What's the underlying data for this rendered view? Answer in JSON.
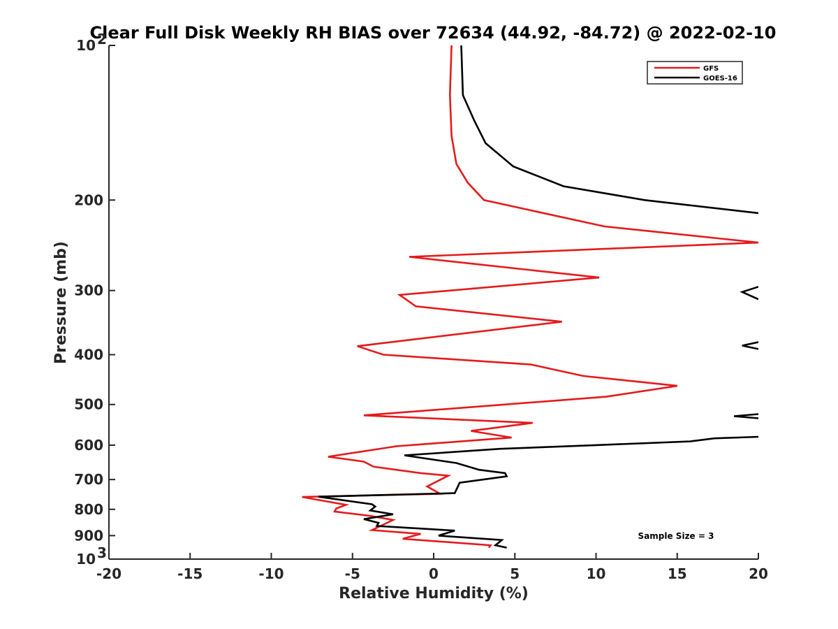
{
  "chart_data": {
    "type": "line",
    "title": "Clear Full Disk Weekly RH BIAS over 72634 (44.92, -84.72) @ 2022-02-10",
    "xlabel": "Relative Humidity (%)",
    "ylabel": "Pressure (mb)",
    "xlim": [
      -20,
      20
    ],
    "ylim": [
      100,
      1000
    ],
    "yscale": "log",
    "yreversed": true,
    "grid": false,
    "legend_position": "top-right",
    "x_ticks": [
      "-20",
      "-15",
      "-10",
      "-5",
      "0",
      "5",
      "10",
      "15",
      "20"
    ],
    "y_ticks": [
      {
        "value": 100,
        "label": "10",
        "sup": "2"
      },
      {
        "value": 200,
        "label": "200"
      },
      {
        "value": 300,
        "label": "300"
      },
      {
        "value": 400,
        "label": "400"
      },
      {
        "value": 500,
        "label": "500"
      },
      {
        "value": 600,
        "label": "600"
      },
      {
        "value": 700,
        "label": "700"
      },
      {
        "value": 800,
        "label": "800"
      },
      {
        "value": 900,
        "label": "900"
      },
      {
        "value": 1000,
        "label": "10",
        "sup": "3"
      }
    ],
    "annotation": "Sample Size = 3",
    "series": [
      {
        "name": "GFS",
        "color": "#e41a1c",
        "segments": [
          [
            [
              1.1,
              100
            ],
            [
              1.0,
              125
            ],
            [
              1.1,
              150
            ],
            [
              1.4,
              170
            ],
            [
              2.1,
              185
            ],
            [
              3.1,
              200
            ],
            [
              10.5,
              225
            ],
            [
              20.0,
              242
            ],
            [
              -1.5,
              258
            ],
            [
              10.2,
              283
            ],
            [
              -2.1,
              306
            ],
            [
              -1.1,
              322
            ],
            [
              7.9,
              345
            ],
            [
              -4.7,
              385
            ],
            [
              -3.1,
              400
            ],
            [
              6.0,
              418
            ],
            [
              9.2,
              440
            ],
            [
              15.0,
              460
            ],
            [
              10.6,
              483
            ],
            [
              -4.3,
              525
            ],
            [
              6.1,
              543
            ],
            [
              2.3,
              563
            ],
            [
              4.8,
              580
            ],
            [
              -2.3,
              603
            ],
            [
              -6.5,
              632
            ],
            [
              -4.3,
              646
            ],
            [
              -3.7,
              661
            ],
            [
              -0.8,
              680
            ],
            [
              0.9,
              688
            ],
            [
              -0.4,
              722
            ],
            [
              0.4,
              746
            ],
            [
              -8.1,
              757
            ],
            [
              -5.4,
              784
            ],
            [
              -6.0,
              797
            ],
            [
              -6.1,
              808
            ],
            [
              -3.9,
              824
            ],
            [
              -2.5,
              839
            ],
            [
              -3.8,
              878
            ],
            [
              -0.8,
              893
            ],
            [
              -1.9,
              913
            ],
            [
              3.5,
              940
            ],
            [
              3.4,
              950
            ]
          ]
        ]
      },
      {
        "name": "GOES-16",
        "color": "#000000",
        "segments": [
          [
            [
              1.7,
              100
            ],
            [
              1.8,
              125
            ],
            [
              2.5,
              140
            ],
            [
              3.2,
              155
            ],
            [
              4.9,
              172
            ],
            [
              8.0,
              188
            ],
            [
              13.0,
              200
            ],
            [
              20.0,
              212
            ]
          ],
          [
            [
              20.0,
              295
            ],
            [
              19.0,
              302
            ],
            [
              20.0,
              312
            ]
          ],
          [
            [
              20.0,
              378
            ],
            [
              19.0,
              384
            ],
            [
              20.0,
              390
            ]
          ],
          [
            [
              20.0,
              522
            ],
            [
              18.5,
              527
            ],
            [
              20.0,
              532
            ]
          ],
          [
            [
              20.0,
              578
            ],
            [
              17.3,
              582
            ],
            [
              15.8,
              590
            ],
            [
              10.0,
              600
            ],
            [
              4.1,
              610
            ],
            [
              -1.8,
              628
            ],
            [
              1.4,
              650
            ],
            [
              2.8,
              670
            ],
            [
              4.4,
              680
            ],
            [
              4.5,
              690
            ],
            [
              1.6,
              710
            ],
            [
              1.3,
              744
            ],
            [
              -7.1,
              756
            ],
            [
              -3.8,
              782
            ],
            [
              -3.6,
              790
            ],
            [
              -3.9,
              804
            ],
            [
              -2.5,
              818
            ],
            [
              -4.3,
              836
            ],
            [
              -3.4,
              850
            ],
            [
              -3.5,
              862
            ],
            [
              1.3,
              880
            ],
            [
              0.3,
              900
            ],
            [
              4.2,
              918
            ],
            [
              3.8,
              940
            ],
            [
              4.5,
              950
            ]
          ]
        ]
      }
    ]
  }
}
